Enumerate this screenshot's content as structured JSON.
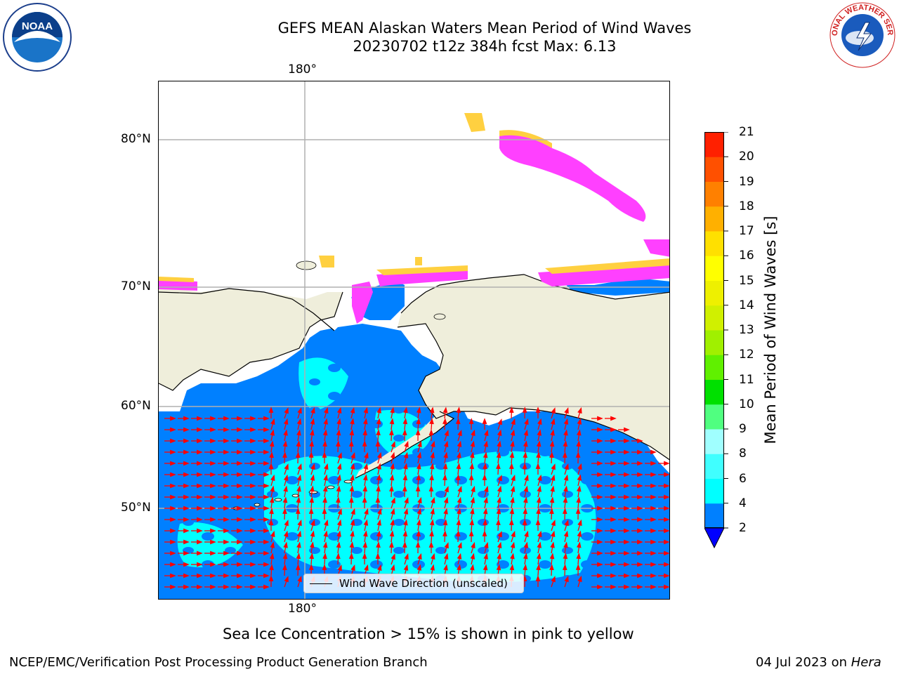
{
  "header": {
    "title_line1": "GEFS MEAN Alaskan Waters Mean Period of Wind Waves",
    "title_line2": "20230702 t12z 384h fcst   Max: 6.13"
  },
  "logos": {
    "left": "noaa-logo",
    "right": "national-weather-service-logo",
    "right_text": "NATIONAL WEATHER SERVICE",
    "left_text": "NOAA"
  },
  "map": {
    "lon_label_top": "180°",
    "lon_label_bottom": "180°",
    "lat_labels": [
      "80°N",
      "70°N",
      "60°N",
      "50°N"
    ],
    "legend_label": "Wind Wave Direction (unscaled)",
    "colors": {
      "land": "#efeedb",
      "ocean_low": "#0080ff",
      "ocean_mid": "#00ffff",
      "ice_pink": "#ff40ff",
      "ice_yellow": "#ffd040",
      "arrow": "#ff0000",
      "grid": "#b0b0b0"
    }
  },
  "colorbar": {
    "label": "Mean Period of Wind Waves [s]",
    "ticks": [
      "2",
      "4",
      "6",
      "8",
      "9",
      "10",
      "11",
      "12",
      "13",
      "14",
      "15",
      "16",
      "17",
      "18",
      "19",
      "20",
      "21"
    ],
    "colors": [
      "#0080ff",
      "#00ffff",
      "#40ffff",
      "#a0ffff",
      "#50ff80",
      "#00e000",
      "#60f000",
      "#a0f000",
      "#d0f000",
      "#eef000",
      "#ffff00",
      "#ffe000",
      "#ffb000",
      "#ff8000",
      "#ff5000",
      "#ff2000"
    ],
    "under_color": "#0000ff"
  },
  "footer": {
    "note": "Sea Ice Concentration > 15% is shown in pink to yellow",
    "left": "NCEP/EMC/Verification Post Processing Product Generation Branch",
    "right_prefix": "04 Jul 2023 on ",
    "right_machine": "Hera"
  }
}
